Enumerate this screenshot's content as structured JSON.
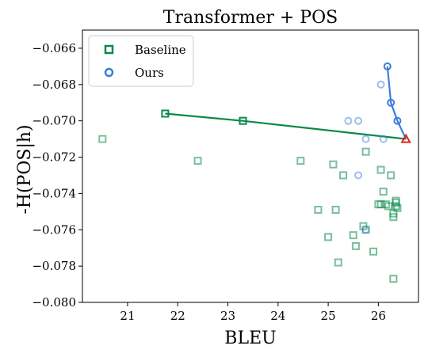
{
  "chart_data": {
    "type": "scatter",
    "title": "Transformer + POS",
    "xlabel": "BLEU",
    "ylabel": "-H(POS|h)",
    "xlim": [
      20.1,
      26.8
    ],
    "ylim": [
      -0.08,
      -0.065
    ],
    "xticks": [
      21,
      22,
      23,
      24,
      25,
      26
    ],
    "yticks": [
      -0.08,
      -0.078,
      -0.076,
      -0.074,
      -0.072,
      -0.07,
      -0.068,
      -0.066
    ],
    "grid": false,
    "legend_position": "top-left",
    "colors": {
      "baseline": "#0a8a4a",
      "ours": "#3b7ddd",
      "marker": "#e0221a"
    },
    "series": [
      {
        "name": "Baseline",
        "marker": "square",
        "points": [
          [
            20.5,
            -0.071
          ],
          [
            22.4,
            -0.0722
          ],
          [
            24.45,
            -0.0722
          ],
          [
            24.8,
            -0.0749
          ],
          [
            25.0,
            -0.0764
          ],
          [
            25.1,
            -0.0724
          ],
          [
            25.15,
            -0.0749
          ],
          [
            25.2,
            -0.0778
          ],
          [
            25.3,
            -0.073
          ],
          [
            25.5,
            -0.0763
          ],
          [
            25.55,
            -0.0769
          ],
          [
            25.7,
            -0.0758
          ],
          [
            25.75,
            -0.076
          ],
          [
            25.75,
            -0.0717
          ],
          [
            25.9,
            -0.0772
          ],
          [
            26.0,
            -0.0746
          ],
          [
            26.05,
            -0.0746
          ],
          [
            26.05,
            -0.0727
          ],
          [
            26.1,
            -0.0739
          ],
          [
            26.15,
            -0.0746
          ],
          [
            26.2,
            -0.0747
          ],
          [
            26.25,
            -0.073
          ],
          [
            26.3,
            -0.0787
          ],
          [
            26.3,
            -0.0751
          ],
          [
            26.3,
            -0.0753
          ],
          [
            26.35,
            -0.0744
          ],
          [
            26.35,
            -0.0745
          ],
          [
            26.35,
            -0.0747
          ],
          [
            26.38,
            -0.0748
          ]
        ],
        "frontier": [
          [
            21.75,
            -0.0696
          ],
          [
            23.3,
            -0.07
          ],
          [
            26.55,
            -0.071
          ]
        ]
      },
      {
        "name": "Ours",
        "marker": "circle",
        "points": [
          [
            25.4,
            -0.07
          ],
          [
            25.6,
            -0.07
          ],
          [
            25.6,
            -0.073
          ],
          [
            25.75,
            -0.071
          ],
          [
            25.75,
            -0.076
          ],
          [
            26.05,
            -0.068
          ],
          [
            26.1,
            -0.071
          ]
        ],
        "frontier": [
          [
            26.18,
            -0.067
          ],
          [
            26.25,
            -0.069
          ],
          [
            26.38,
            -0.07
          ],
          [
            26.55,
            -0.071
          ]
        ]
      }
    ],
    "highlight_point": [
      26.55,
      -0.071
    ]
  }
}
